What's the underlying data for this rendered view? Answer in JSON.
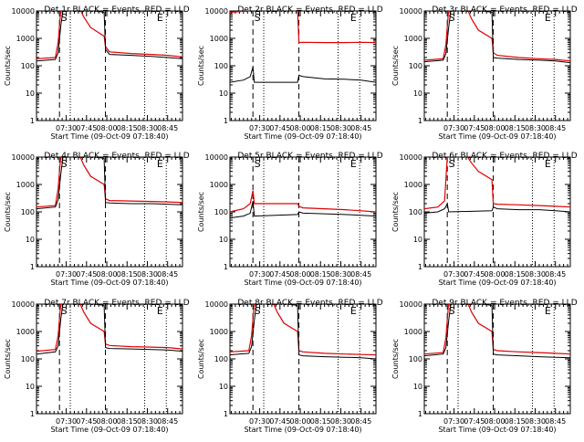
{
  "chart_data": {
    "type": "line",
    "layout": "3x3 grid",
    "y_scale": "log",
    "ylim": [
      1,
      10000
    ],
    "y_ticks": [
      1,
      10,
      100,
      1000,
      10000
    ],
    "y_tick_labels": [
      "1",
      "10",
      "100",
      "1000",
      "10000"
    ],
    "x_tick_labels": [
      "07:30",
      "07:45",
      "08:00",
      "08:15",
      "08:30",
      "08:45"
    ],
    "x_ticks_min": [
      12,
      27,
      42,
      57,
      72,
      87
    ],
    "xlim_min": [
      -10,
      98
    ],
    "ylabel": "Counts/sec",
    "xlabel": "Start Time (09-Oct-09 07:18:40)",
    "marker_labels": {
      "S": "S",
      "E": "E"
    },
    "series_colors": {
      "events": "#000000",
      "lld": "#e00000"
    },
    "panels": [
      {
        "title": "Det 1r BLACK = Events, RED = LLD",
        "dashed_min": [
          7,
          41
        ],
        "dotted_min": [
          15,
          70,
          86
        ],
        "S_min": 8,
        "E_min": 79,
        "events": [
          [
            -10,
            150
          ],
          [
            4,
            170
          ],
          [
            6,
            300
          ],
          [
            8,
            3000
          ],
          [
            10,
            14000
          ],
          [
            40,
            9000
          ],
          [
            41,
            400
          ],
          [
            44,
            260
          ],
          [
            60,
            240
          ],
          [
            75,
            220
          ],
          [
            87,
            200
          ],
          [
            98,
            180
          ]
        ],
        "lld": [
          [
            -10,
            180
          ],
          [
            4,
            200
          ],
          [
            6,
            700
          ],
          [
            8,
            12000
          ],
          [
            22,
            12000
          ],
          [
            25,
            6000
          ],
          [
            30,
            2500
          ],
          [
            40,
            1200
          ],
          [
            41,
            500
          ],
          [
            44,
            320
          ],
          [
            60,
            280
          ],
          [
            75,
            260
          ],
          [
            87,
            240
          ],
          [
            98,
            210
          ]
        ]
      },
      {
        "title": "Det 2r BLACK = Events, RED = LLD",
        "dashed_min": [
          7,
          41
        ],
        "dotted_min": [
          15,
          70,
          86
        ],
        "S_min": 8,
        "E_min": 79,
        "events": [
          [
            -10,
            25
          ],
          [
            0,
            30
          ],
          [
            5,
            40
          ],
          [
            7,
            90
          ],
          [
            8,
            25
          ],
          [
            40,
            25
          ],
          [
            41,
            45
          ],
          [
            44,
            40
          ],
          [
            60,
            33
          ],
          [
            75,
            32
          ],
          [
            87,
            30
          ],
          [
            98,
            25
          ]
        ],
        "lld": [
          [
            -10,
            9000
          ],
          [
            4,
            10000
          ],
          [
            7,
            14000
          ],
          [
            40,
            12000
          ],
          [
            41,
            700
          ],
          [
            44,
            720
          ],
          [
            60,
            700
          ],
          [
            75,
            700
          ],
          [
            87,
            720
          ],
          [
            98,
            700
          ]
        ]
      },
      {
        "title": "Det 3r BLACK = Events, RED = LLD",
        "dashed_min": [
          7,
          41
        ],
        "dotted_min": [
          15,
          70,
          86
        ],
        "S_min": 8,
        "E_min": 79,
        "events": [
          [
            -10,
            140
          ],
          [
            4,
            160
          ],
          [
            6,
            280
          ],
          [
            8,
            2500
          ],
          [
            10,
            14000
          ],
          [
            40,
            9000
          ],
          [
            41,
            200
          ],
          [
            44,
            190
          ],
          [
            60,
            170
          ],
          [
            75,
            160
          ],
          [
            87,
            150
          ],
          [
            98,
            130
          ]
        ],
        "lld": [
          [
            -10,
            160
          ],
          [
            4,
            180
          ],
          [
            6,
            600
          ],
          [
            8,
            12000
          ],
          [
            22,
            11000
          ],
          [
            25,
            5000
          ],
          [
            30,
            2000
          ],
          [
            40,
            1000
          ],
          [
            41,
            300
          ],
          [
            44,
            240
          ],
          [
            60,
            200
          ],
          [
            75,
            180
          ],
          [
            87,
            170
          ],
          [
            98,
            150
          ]
        ]
      },
      {
        "title": "Det 4r BLACK = Events, RED = LLD",
        "dashed_min": [
          7,
          41
        ],
        "dotted_min": [
          15,
          70,
          86
        ],
        "S_min": 8,
        "E_min": 79,
        "events": [
          [
            -10,
            130
          ],
          [
            4,
            150
          ],
          [
            6,
            280
          ],
          [
            8,
            2500
          ],
          [
            10,
            14000
          ],
          [
            40,
            9000
          ],
          [
            41,
            220
          ],
          [
            44,
            210
          ],
          [
            60,
            200
          ],
          [
            75,
            200
          ],
          [
            87,
            190
          ],
          [
            98,
            180
          ]
        ],
        "lld": [
          [
            -10,
            150
          ],
          [
            4,
            170
          ],
          [
            6,
            700
          ],
          [
            8,
            12000
          ],
          [
            22,
            11000
          ],
          [
            25,
            5000
          ],
          [
            30,
            2000
          ],
          [
            40,
            1000
          ],
          [
            41,
            300
          ],
          [
            44,
            260
          ],
          [
            60,
            250
          ],
          [
            75,
            240
          ],
          [
            87,
            230
          ],
          [
            98,
            220
          ]
        ]
      },
      {
        "title": "Det 5r BLACK = Events, RED = LLD",
        "dashed_min": [
          7,
          41
        ],
        "dotted_min": [
          15,
          70,
          86
        ],
        "S_min": 8,
        "E_min": 79,
        "events": [
          [
            -10,
            60
          ],
          [
            0,
            70
          ],
          [
            5,
            90
          ],
          [
            7,
            250
          ],
          [
            8,
            70
          ],
          [
            40,
            80
          ],
          [
            41,
            100
          ],
          [
            44,
            90
          ],
          [
            60,
            85
          ],
          [
            75,
            80
          ],
          [
            87,
            75
          ],
          [
            98,
            70
          ]
        ],
        "lld": [
          [
            -10,
            100
          ],
          [
            0,
            130
          ],
          [
            5,
            200
          ],
          [
            7,
            600
          ],
          [
            8,
            200
          ],
          [
            40,
            200
          ],
          [
            41,
            160
          ],
          [
            44,
            140
          ],
          [
            60,
            130
          ],
          [
            75,
            120
          ],
          [
            87,
            110
          ],
          [
            98,
            100
          ]
        ]
      },
      {
        "title": "Det 6r BLACK = Events, RED = LLD",
        "dashed_min": [
          7,
          41
        ],
        "dotted_min": [
          15,
          70,
          86
        ],
        "S_min": 8,
        "E_min": 79,
        "events": [
          [
            -10,
            90
          ],
          [
            0,
            100
          ],
          [
            5,
            130
          ],
          [
            7,
            200
          ],
          [
            8,
            100
          ],
          [
            40,
            110
          ],
          [
            41,
            150
          ],
          [
            44,
            130
          ],
          [
            60,
            120
          ],
          [
            75,
            120
          ],
          [
            87,
            110
          ],
          [
            98,
            100
          ]
        ],
        "lld": [
          [
            -10,
            130
          ],
          [
            0,
            150
          ],
          [
            5,
            250
          ],
          [
            7,
            10000
          ],
          [
            22,
            10000
          ],
          [
            25,
            6000
          ],
          [
            30,
            3000
          ],
          [
            40,
            1500
          ],
          [
            41,
            200
          ],
          [
            44,
            190
          ],
          [
            60,
            180
          ],
          [
            75,
            170
          ],
          [
            87,
            160
          ],
          [
            98,
            150
          ]
        ]
      },
      {
        "title": "Det 7r BLACK = Events, RED = LLD",
        "dashed_min": [
          7,
          41
        ],
        "dotted_min": [
          15,
          70,
          86
        ],
        "S_min": 8,
        "E_min": 79,
        "events": [
          [
            -10,
            150
          ],
          [
            4,
            180
          ],
          [
            6,
            300
          ],
          [
            8,
            3000
          ],
          [
            10,
            14000
          ],
          [
            40,
            9000
          ],
          [
            41,
            260
          ],
          [
            44,
            240
          ],
          [
            60,
            230
          ],
          [
            75,
            220
          ],
          [
            87,
            210
          ],
          [
            98,
            190
          ]
        ],
        "lld": [
          [
            -10,
            190
          ],
          [
            4,
            220
          ],
          [
            6,
            700
          ],
          [
            8,
            12000
          ],
          [
            22,
            11000
          ],
          [
            25,
            5000
          ],
          [
            30,
            2000
          ],
          [
            40,
            1000
          ],
          [
            41,
            350
          ],
          [
            44,
            310
          ],
          [
            60,
            280
          ],
          [
            75,
            270
          ],
          [
            87,
            260
          ],
          [
            98,
            230
          ]
        ]
      },
      {
        "title": "Det 8r BLACK = Events, RED = LLD",
        "dashed_min": [
          7,
          41
        ],
        "dotted_min": [
          15,
          70,
          86
        ],
        "S_min": 8,
        "E_min": 79,
        "events": [
          [
            -10,
            140
          ],
          [
            4,
            160
          ],
          [
            6,
            280
          ],
          [
            8,
            2500
          ],
          [
            10,
            14000
          ],
          [
            40,
            9000
          ],
          [
            41,
            140
          ],
          [
            44,
            130
          ],
          [
            60,
            120
          ],
          [
            75,
            115
          ],
          [
            87,
            110
          ],
          [
            98,
            100
          ]
        ],
        "lld": [
          [
            -10,
            180
          ],
          [
            4,
            200
          ],
          [
            6,
            700
          ],
          [
            8,
            12000
          ],
          [
            22,
            11000
          ],
          [
            25,
            5000
          ],
          [
            30,
            2000
          ],
          [
            40,
            1000
          ],
          [
            41,
            200
          ],
          [
            44,
            180
          ],
          [
            60,
            160
          ],
          [
            75,
            150
          ],
          [
            87,
            145
          ],
          [
            98,
            140
          ]
        ]
      },
      {
        "title": "Det 9r BLACK = Events, RED = LLD",
        "dashed_min": [
          7,
          41
        ],
        "dotted_min": [
          15,
          70,
          86
        ],
        "S_min": 8,
        "E_min": 79,
        "events": [
          [
            -10,
            130
          ],
          [
            4,
            150
          ],
          [
            6,
            260
          ],
          [
            8,
            2500
          ],
          [
            10,
            14000
          ],
          [
            40,
            9000
          ],
          [
            41,
            150
          ],
          [
            44,
            140
          ],
          [
            60,
            130
          ],
          [
            75,
            120
          ],
          [
            87,
            115
          ],
          [
            98,
            110
          ]
        ],
        "lld": [
          [
            -10,
            150
          ],
          [
            4,
            170
          ],
          [
            6,
            600
          ],
          [
            8,
            12000
          ],
          [
            22,
            11000
          ],
          [
            25,
            5000
          ],
          [
            30,
            2000
          ],
          [
            40,
            1000
          ],
          [
            41,
            220
          ],
          [
            44,
            200
          ],
          [
            60,
            180
          ],
          [
            75,
            170
          ],
          [
            87,
            160
          ],
          [
            98,
            150
          ]
        ]
      }
    ]
  }
}
